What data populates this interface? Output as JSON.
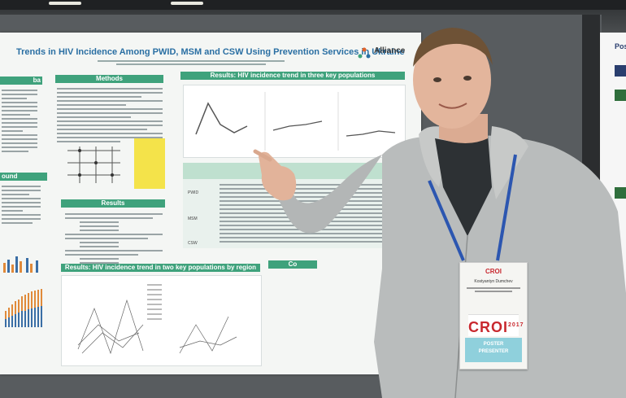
{
  "poster": {
    "title": "Trends in HIV Incidence Among PWID, MSM and CSW Using Prevention Services in Ukraine",
    "logo_text": "Alliance",
    "sections": {
      "methods": "Methods",
      "results_trend_three": "Results: HIV incidence trend in three key populations",
      "results": "Results",
      "results_trend_region": "Results: HIV incidence trend in two key populations by region",
      "background": "ound",
      "conclusions": "Co",
      "left_top": "ba"
    },
    "table_rows": [
      "PWID",
      "MSM",
      "CSW"
    ]
  },
  "side_poster": {
    "title": "Pos"
  },
  "badge": {
    "event_small": "CROI",
    "name": "Kostyantyn Dumchev",
    "event_large": "CROI",
    "year": "2017",
    "role_line1": "POSTER",
    "role_line2": "PRESENTER",
    "colors": {
      "croi_red": "#c8282e",
      "role_band": "#8fd0dc"
    }
  },
  "colors": {
    "poster_header_green": "#3fa27c",
    "poster_title_blue": "#2a6fa3",
    "jacket_gray": "#b9bcbc",
    "lanyard_blue": "#2c56b0"
  }
}
